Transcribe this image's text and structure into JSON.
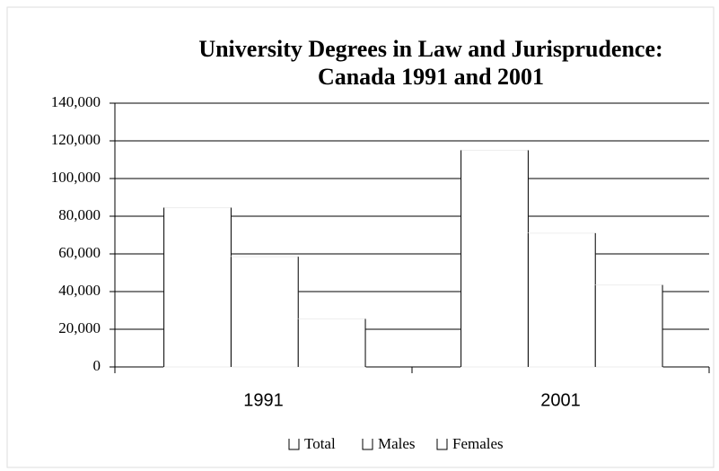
{
  "chart_data": {
    "type": "bar",
    "title": [
      "University Degrees in Law and Jurisprudence:",
      "Canada 1991 and 2001"
    ],
    "categories": [
      "1991",
      "2001"
    ],
    "series": [
      {
        "name": "Total",
        "color": "#ffffff",
        "values": [
          84500,
          115000
        ]
      },
      {
        "name": "Males",
        "color": "#ffffff",
        "values": [
          58500,
          71000
        ]
      },
      {
        "name": "Females",
        "color": "#ffffff",
        "values": [
          25500,
          43500
        ]
      }
    ],
    "ylim": [
      0,
      140000
    ],
    "yticks": [
      0,
      {
        "value": 20000,
        "label": "20,000"
      },
      {
        "value": 40000,
        "label": "40,000"
      },
      {
        "value": 60000,
        "label": "60,000"
      },
      {
        "value": 80000,
        "label": "80,000"
      },
      {
        "value": 100000,
        "label": "100,000"
      },
      {
        "value": 120000,
        "label": "120,000"
      },
      {
        "value": 140000,
        "label": "140,000"
      }
    ],
    "grid": true,
    "legend": "bottom"
  }
}
